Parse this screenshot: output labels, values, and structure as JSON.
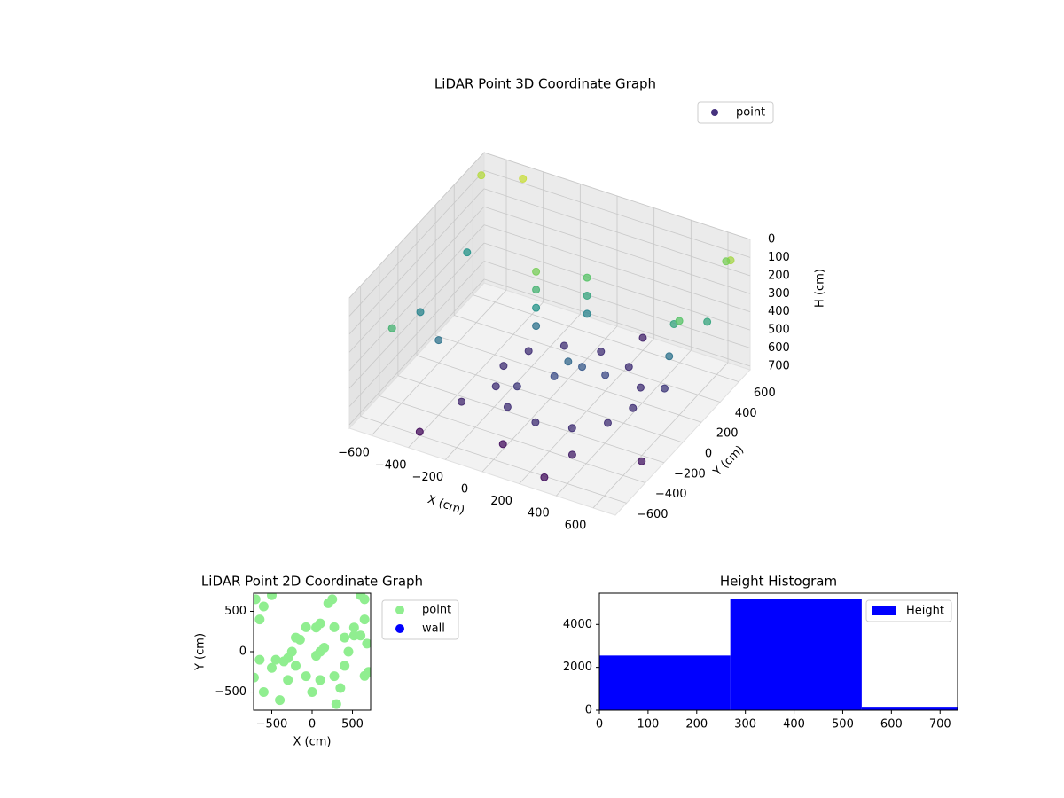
{
  "chart_data": [
    {
      "type": "scatter3d",
      "title": "LiDAR Point 3D Coordinate Graph",
      "xlabel": "X (cm)",
      "ylabel": "Y (cm)",
      "zlabel": "H (cm)",
      "xlim": [
        -720,
        720
      ],
      "ylim": [
        -720,
        720
      ],
      "zlim": [
        0,
        720
      ],
      "z_inverted": true,
      "xticks": [
        {
          "value": -600,
          "label": "−600"
        },
        {
          "value": -400,
          "label": "−400"
        },
        {
          "value": -200,
          "label": "−200"
        },
        0,
        200,
        400,
        600
      ],
      "yticks": [
        {
          "value": -600,
          "label": "−600"
        },
        {
          "value": -400,
          "label": "−400"
        },
        {
          "value": -200,
          "label": "−200"
        },
        0,
        200,
        400,
        600
      ],
      "zticks": [
        0,
        100,
        200,
        300,
        400,
        500,
        600,
        700
      ],
      "grid": true,
      "colormap": "viridis",
      "legend": "upper right",
      "series": [
        {
          "name": "point",
          "color": "#46327e",
          "x": [
            450,
            403,
            275,
            100,
            -75,
            -203,
            -250,
            -203,
            -75,
            100,
            275,
            403,
            100,
            150,
            50,
            -150,
            -150,
            -150,
            -150,
            50,
            50,
            50,
            520,
            520,
            520,
            -650,
            -600,
            -700,
            -500,
            650,
            600,
            -400,
            300,
            650,
            -650,
            -500,
            200,
            650,
            600,
            0,
            350,
            -300,
            250,
            -100
          ],
          "y": [
            0,
            175,
            303,
            350,
            303,
            175,
            0,
            -175,
            -303,
            -350,
            -303,
            -175,
            0,
            50,
            -50,
            150,
            150,
            150,
            150,
            300,
            300,
            300,
            300,
            250,
            200,
            400,
            -500,
            650,
            700,
            650,
            700,
            -600,
            -650,
            -300,
            -100,
            -200,
            600,
            400,
            200,
            -500,
            -450,
            -350,
            100,
            -150
          ],
          "z": [
            620,
            620,
            620,
            620,
            620,
            620,
            620,
            620,
            620,
            620,
            620,
            620,
            480,
            520,
            550,
            150,
            250,
            350,
            450,
            200,
            300,
            400,
            300,
            450,
            600,
            350,
            250,
            80,
            60,
            100,
            150,
            700,
            690,
            680,
            400,
            450,
            650,
            300,
            200,
            690,
            660,
            640,
            560,
            600
          ]
        }
      ]
    },
    {
      "type": "scatter",
      "title": "LiDAR Point 2D Coordinate Graph",
      "xlabel": "X (cm)",
      "ylabel": "Y (cm)",
      "xlim": [
        -725,
        725
      ],
      "ylim": [
        -725,
        725
      ],
      "xticks": [
        {
          "value": -500,
          "label": "−500"
        },
        0,
        500
      ],
      "yticks": [
        {
          "value": -500,
          "label": "−500"
        },
        0,
        500
      ],
      "legend": "outside right",
      "series": [
        {
          "name": "point",
          "color": "#90ee90",
          "x": [
            450,
            403,
            275,
            100,
            -75,
            -203,
            -250,
            -203,
            -75,
            100,
            275,
            403,
            100,
            150,
            50,
            -150,
            50,
            520,
            520,
            -650,
            -600,
            -700,
            -500,
            650,
            600,
            -400,
            300,
            650,
            -650,
            -500,
            200,
            650,
            600,
            0,
            350,
            -300,
            -450,
            -350,
            -300,
            680,
            700,
            -720,
            -600,
            250
          ],
          "y": [
            0,
            175,
            303,
            350,
            303,
            175,
            0,
            -175,
            -303,
            -350,
            -303,
            -175,
            0,
            50,
            -50,
            150,
            300,
            300,
            200,
            400,
            -500,
            650,
            700,
            650,
            700,
            -600,
            -650,
            -300,
            -100,
            -200,
            600,
            400,
            200,
            -500,
            -450,
            -350,
            -100,
            -120,
            -80,
            100,
            -250,
            -320,
            560,
            650
          ]
        },
        {
          "name": "wall",
          "color": "#0000ff",
          "x": [],
          "y": []
        }
      ]
    },
    {
      "type": "histogram",
      "title": "Height Histogram",
      "bins": [
        0,
        269,
        539,
        808
      ],
      "counts": [
        2550,
        5200,
        160
      ],
      "xlim": [
        0,
        736
      ],
      "ylim": [
        0,
        5460
      ],
      "xticks": [
        0,
        100,
        200,
        300,
        400,
        500,
        600,
        700
      ],
      "yticks": [
        0,
        2000,
        4000
      ],
      "legend": "upper right",
      "series": [
        {
          "name": "Height",
          "color": "#0000ff"
        }
      ]
    }
  ]
}
